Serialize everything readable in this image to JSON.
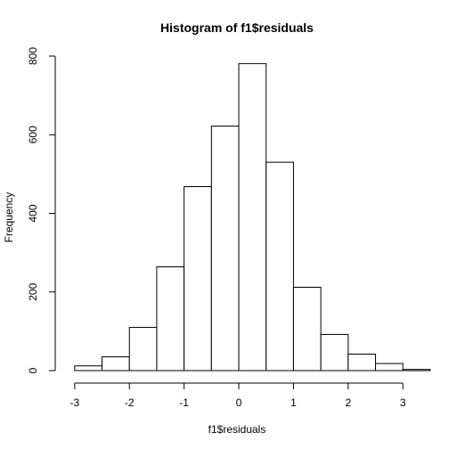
{
  "chart_data": {
    "type": "bar",
    "title": "Histogram of f1$residuals",
    "xlabel": "f1$residuals",
    "ylabel": "Frequency",
    "bins": [
      {
        "x0": -3.0,
        "x1": -2.5,
        "count": 12
      },
      {
        "x0": -2.5,
        "x1": -2.0,
        "count": 35
      },
      {
        "x0": -2.0,
        "x1": -1.5,
        "count": 110
      },
      {
        "x0": -1.5,
        "x1": -1.0,
        "count": 264
      },
      {
        "x0": -1.0,
        "x1": -0.5,
        "count": 468
      },
      {
        "x0": -0.5,
        "x1": 0.0,
        "count": 622
      },
      {
        "x0": 0.0,
        "x1": 0.5,
        "count": 781
      },
      {
        "x0": 0.5,
        "x1": 1.0,
        "count": 530
      },
      {
        "x0": 1.0,
        "x1": 1.5,
        "count": 212
      },
      {
        "x0": 1.5,
        "x1": 2.0,
        "count": 92
      },
      {
        "x0": 2.0,
        "x1": 2.5,
        "count": 42
      },
      {
        "x0": 2.5,
        "x1": 3.0,
        "count": 18
      },
      {
        "x0": 3.0,
        "x1": 3.5,
        "count": 3
      }
    ],
    "xticks": [
      -3,
      -2,
      -1,
      0,
      1,
      2,
      3
    ],
    "yticks": [
      0,
      200,
      400,
      600,
      800
    ],
    "xlim": [
      -3.6,
      3.55
    ],
    "ylim": [
      0,
      800
    ],
    "grid": false,
    "bar_fill": "#ffffff",
    "bar_stroke": "#000000"
  }
}
